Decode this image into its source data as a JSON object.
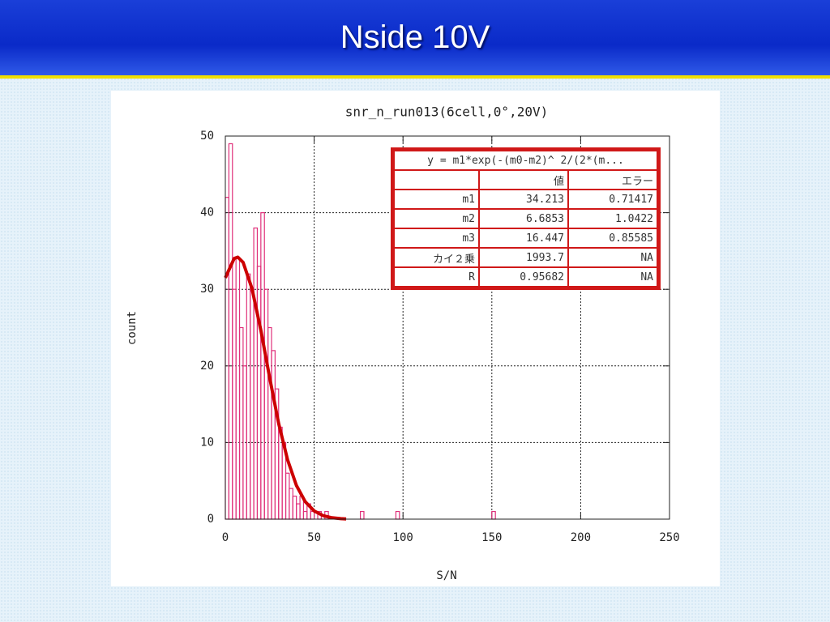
{
  "slide_title": "Nside 10V",
  "chart_data": {
    "type": "histogram",
    "title": "snr_n_run013(6cell,0°,20V)",
    "xlabel": "S/N",
    "ylabel": "count",
    "bins": [
      0,
      2,
      4,
      6,
      8,
      10,
      12,
      14,
      16,
      18,
      20,
      22,
      24,
      26,
      28,
      30,
      32,
      34,
      36,
      38,
      40,
      42,
      44,
      46,
      48,
      50,
      52,
      54,
      56,
      58,
      60,
      62,
      64,
      66,
      68,
      70,
      72,
      74,
      76,
      78,
      80,
      82,
      84,
      86,
      88,
      90,
      92,
      94,
      96,
      98,
      100,
      102,
      104,
      106,
      108,
      110,
      112,
      114,
      116,
      118,
      120,
      122,
      124,
      126,
      128,
      130,
      132,
      134,
      136,
      138,
      140,
      142,
      144,
      146,
      148,
      150,
      152,
      154
    ],
    "counts": [
      42,
      49,
      30,
      34,
      25,
      20,
      32,
      30,
      38,
      33,
      40,
      30,
      25,
      22,
      17,
      12,
      10,
      6,
      4,
      3,
      2,
      3,
      1,
      2,
      1,
      0,
      1,
      0,
      1,
      0,
      0,
      0,
      0,
      0,
      0,
      0,
      0,
      0,
      1,
      0,
      0,
      0,
      0,
      0,
      0,
      0,
      0,
      0,
      1,
      0,
      0,
      0,
      0,
      0,
      0,
      0,
      0,
      0,
      0,
      0,
      0,
      0,
      0,
      0,
      0,
      0,
      0,
      0,
      0,
      0,
      0,
      0,
      0,
      0,
      0,
      1,
      0
    ],
    "color": "#e0307a",
    "fit": {
      "x": [
        0,
        5,
        7,
        10,
        15,
        20,
        25,
        30,
        35,
        40,
        45,
        50,
        55,
        60,
        65,
        68
      ],
      "values": [
        31.5,
        34.03,
        34.2,
        33.52,
        30.1,
        24.65,
        18.4,
        12.5,
        7.77,
        4.4,
        2.27,
        1.07,
        0.46,
        0.18,
        0.064,
        0.03
      ],
      "color": "#cc0000"
    },
    "xlim": [
      0,
      250
    ],
    "xticks": [
      0,
      50,
      100,
      150,
      200,
      250
    ],
    "ylim": [
      0,
      50
    ],
    "yticks": [
      0,
      10,
      20,
      30,
      40,
      50
    ],
    "grid": true
  },
  "fit_table": {
    "formula": "y = m1*exp(-(m0-m2)^ 2/(2*(m...",
    "columns": [
      "値",
      "エラー"
    ],
    "rows": [
      [
        "m1",
        "34.213",
        "0.71417"
      ],
      [
        "m2",
        "6.6853",
        "1.0422"
      ],
      [
        "m3",
        "16.447",
        "0.85585"
      ],
      [
        "カイ２乗",
        "1993.7",
        "NA"
      ],
      [
        "R",
        "0.95682",
        "NA"
      ]
    ]
  }
}
